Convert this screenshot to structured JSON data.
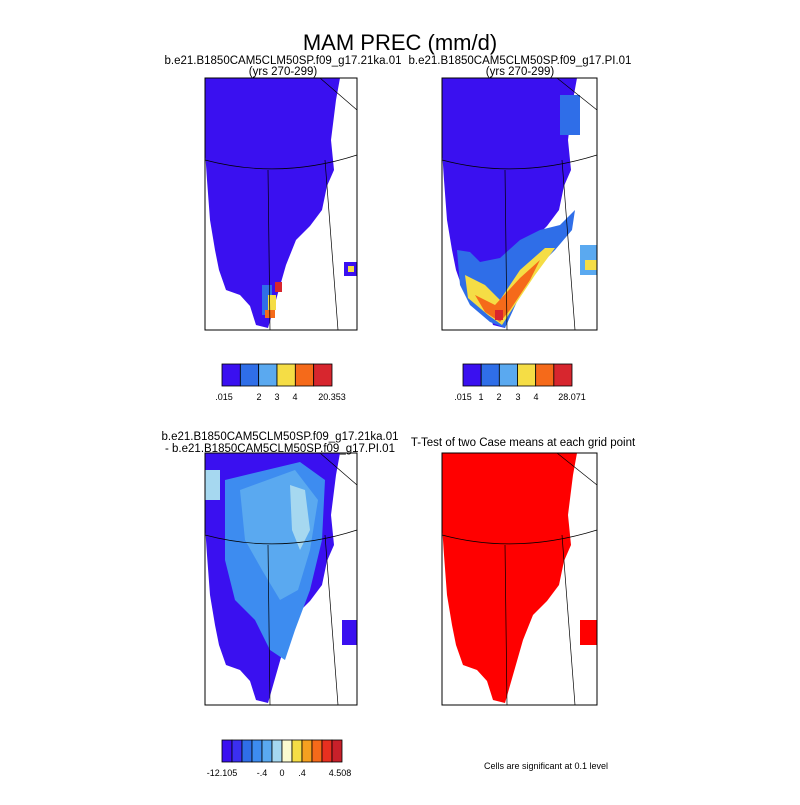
{
  "title": "MAM PREC (mm/d)",
  "panels": [
    {
      "title": "b.e21.B1850CAM5CLM50SP.f09_g17.21ka.01",
      "subtitle": "(yrs 270-299)",
      "colorbar": {
        "colors": [
          "#3a10f0",
          "#2f6ee8",
          "#5aa9f0",
          "#f5dd45",
          "#f56a1a",
          "#d7262e"
        ],
        "labels": [
          ".015",
          "2",
          "3",
          "4",
          "20.353"
        ]
      }
    },
    {
      "title": "b.e21.B1850CAM5CLM50SP.f09_g17.PI.01",
      "subtitle": "(yrs 270-299)",
      "colorbar": {
        "colors": [
          "#3a10f0",
          "#2f6ee8",
          "#5aa9f0",
          "#f5dd45",
          "#f56a1a",
          "#d7262e"
        ],
        "labels": [
          ".015",
          "1",
          "2",
          "3",
          "4",
          "28.071"
        ]
      }
    },
    {
      "title": "b.e21.B1850CAM5CLM50SP.f09_g17.21ka.01",
      "subtitle": "- b.e21.B1850CAM5CLM50SP.f09_g17.PI.01",
      "colorbar": {
        "colors": [
          "#3a10f0",
          "#3b2ff0",
          "#2f6ee8",
          "#3d8cf0",
          "#5aa9f0",
          "#a6d8f0",
          "#fbfbd0",
          "#f5dd45",
          "#f5a020",
          "#f56a1a",
          "#e83020",
          "#c8202a"
        ],
        "labels": [
          "-12.105",
          "-.4",
          "0",
          ".4",
          "4.508"
        ]
      }
    },
    {
      "title": "T-Test of two Case means at each grid point",
      "note": "Cells are significant at 0.1 level"
    }
  ]
}
